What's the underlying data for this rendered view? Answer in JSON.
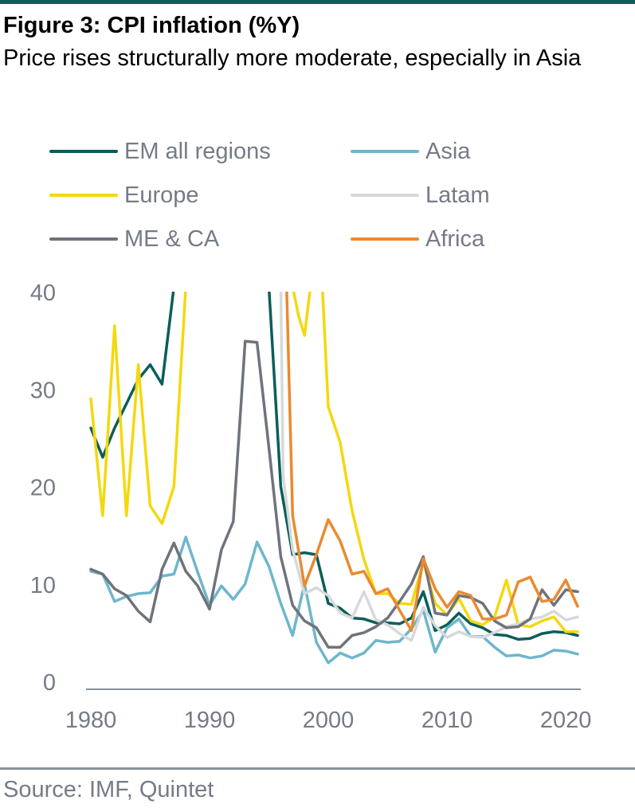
{
  "header": {
    "title": "Figure 3: CPI inflation (%Y)",
    "subtitle": "Price rises structurally more moderate, especially in Asia"
  },
  "footer": {
    "source": "Source: IMF, Quintet"
  },
  "colors": {
    "top_rule": "#0b5e59",
    "axis_text": "#757b86",
    "bottom_rule": "#8a9098"
  },
  "chart_data": {
    "type": "line",
    "title": "CPI inflation (%Y)",
    "xlabel": "",
    "ylabel": "",
    "xlim": [
      1980,
      2021
    ],
    "ylim": [
      0,
      40
    ],
    "yticks": [
      0,
      10,
      20,
      30,
      40
    ],
    "xticks": [
      1980,
      1990,
      2000,
      2010,
      2020
    ],
    "grid": false,
    "legend": "top",
    "series": [
      {
        "name": "EM all regions",
        "color": "#0b5e59",
        "points": [
          [
            1980,
            26
          ],
          [
            1981,
            23
          ],
          [
            1982,
            26
          ],
          [
            1983,
            28.5
          ],
          [
            1984,
            31
          ],
          [
            1985,
            32.5
          ],
          [
            1986,
            30.5
          ],
          [
            1987,
            40.5
          ],
          [
            1995,
            40.5
          ],
          [
            1996,
            20
          ],
          [
            1997,
            13
          ],
          [
            1998,
            13.2
          ],
          [
            1999,
            13
          ],
          [
            2000,
            8
          ],
          [
            2001,
            7.5
          ],
          [
            2002,
            6.5
          ],
          [
            2003,
            6.4
          ],
          [
            2004,
            6
          ],
          [
            2005,
            6
          ],
          [
            2006,
            5.9
          ],
          [
            2007,
            6.5
          ],
          [
            2008,
            9.2
          ],
          [
            2009,
            5.2
          ],
          [
            2010,
            5.8
          ],
          [
            2011,
            7
          ],
          [
            2012,
            5.9
          ],
          [
            2013,
            5.5
          ],
          [
            2014,
            4.8
          ],
          [
            2015,
            4.7
          ],
          [
            2016,
            4.3
          ],
          [
            2017,
            4.4
          ],
          [
            2018,
            4.9
          ],
          [
            2019,
            5.1
          ],
          [
            2020,
            5
          ],
          [
            2021,
            4.7
          ]
        ]
      },
      {
        "name": "Asia",
        "color": "#6fb6cd",
        "points": [
          [
            1980,
            11.3
          ],
          [
            1981,
            11
          ],
          [
            1982,
            8.2
          ],
          [
            1983,
            8.7
          ],
          [
            1984,
            9
          ],
          [
            1985,
            9.1
          ],
          [
            1986,
            10.8
          ],
          [
            1987,
            11
          ],
          [
            1988,
            14.8
          ],
          [
            1989,
            11.2
          ],
          [
            1990,
            7.8
          ],
          [
            1991,
            9.8
          ],
          [
            1992,
            8.4
          ],
          [
            1993,
            10
          ],
          [
            1994,
            14.3
          ],
          [
            1995,
            11.8
          ],
          [
            1996,
            8
          ],
          [
            1997,
            4.7
          ],
          [
            1998,
            10
          ],
          [
            1999,
            4
          ],
          [
            2000,
            1.9
          ],
          [
            2001,
            2.9
          ],
          [
            2002,
            2.4
          ],
          [
            2003,
            2.9
          ],
          [
            2004,
            4.2
          ],
          [
            2005,
            4
          ],
          [
            2006,
            4.1
          ],
          [
            2007,
            5.4
          ],
          [
            2008,
            7.3
          ],
          [
            2009,
            3
          ],
          [
            2010,
            5.5
          ],
          [
            2011,
            6.4
          ],
          [
            2012,
            4.6
          ],
          [
            2013,
            4.6
          ],
          [
            2014,
            3.5
          ],
          [
            2015,
            2.6
          ],
          [
            2016,
            2.7
          ],
          [
            2017,
            2.4
          ],
          [
            2018,
            2.6
          ],
          [
            2019,
            3.2
          ],
          [
            2020,
            3.1
          ],
          [
            2021,
            2.8
          ]
        ]
      },
      {
        "name": "Europe",
        "color": "#f4d80e",
        "points": [
          [
            1980,
            29
          ],
          [
            1981,
            17
          ],
          [
            1982,
            36.5
          ],
          [
            1983,
            17
          ],
          [
            1984,
            32.5
          ],
          [
            1985,
            18
          ],
          [
            1986,
            16.2
          ],
          [
            1987,
            20
          ],
          [
            1988,
            40.5
          ],
          [
            1997,
            40.5
          ],
          [
            1997.5,
            37.5
          ],
          [
            1998,
            35.5
          ],
          [
            1998.5,
            40.5
          ],
          [
            1999.5,
            40.5
          ],
          [
            2000,
            28.2
          ],
          [
            2001,
            24.5
          ],
          [
            2002,
            17.5
          ],
          [
            2003,
            12.5
          ],
          [
            2004,
            9
          ],
          [
            2005,
            9
          ],
          [
            2006,
            8
          ],
          [
            2007,
            7.9
          ],
          [
            2008,
            12.2
          ],
          [
            2009,
            8
          ],
          [
            2010,
            6.8
          ],
          [
            2011,
            8.5
          ],
          [
            2012,
            6.2
          ],
          [
            2013,
            5.8
          ],
          [
            2014,
            6.6
          ],
          [
            2015,
            10.4
          ],
          [
            2016,
            5.8
          ],
          [
            2017,
            5.6
          ],
          [
            2018,
            6.2
          ],
          [
            2019,
            6.6
          ],
          [
            2020,
            5.1
          ],
          [
            2021,
            5.1
          ]
        ]
      },
      {
        "name": "Latam",
        "color": "#d6d9dc",
        "points": [
          [
            1996,
            40.5
          ],
          [
            1996.2,
            21
          ],
          [
            1997,
            13.5
          ],
          [
            1998,
            9
          ],
          [
            1999,
            9.6
          ],
          [
            2000,
            8.8
          ],
          [
            2001,
            7
          ],
          [
            2002,
            6.5
          ],
          [
            2003,
            9.2
          ],
          [
            2004,
            6.3
          ],
          [
            2005,
            5.8
          ],
          [
            2006,
            4.9
          ],
          [
            2007,
            4.2
          ],
          [
            2008,
            7.6
          ],
          [
            2009,
            5.7
          ],
          [
            2010,
            4.5
          ],
          [
            2011,
            5.1
          ],
          [
            2012,
            4.6
          ],
          [
            2013,
            4.5
          ],
          [
            2014,
            5
          ],
          [
            2015,
            5.6
          ],
          [
            2016,
            5.9
          ],
          [
            2017,
            6.4
          ],
          [
            2018,
            6.6
          ],
          [
            2019,
            7.2
          ],
          [
            2020,
            6.3
          ],
          [
            2021,
            6.6
          ]
        ]
      },
      {
        "name": "ME & CA",
        "color": "#6f737b",
        "points": [
          [
            1980,
            11.5
          ],
          [
            1981,
            11
          ],
          [
            1982,
            9.5
          ],
          [
            1983,
            8.8
          ],
          [
            1984,
            7.2
          ],
          [
            1985,
            6.1
          ],
          [
            1986,
            11.5
          ],
          [
            1987,
            14.2
          ],
          [
            1988,
            11.3
          ],
          [
            1989,
            9.8
          ],
          [
            1990,
            7.4
          ],
          [
            1991,
            13.5
          ],
          [
            1992,
            16.4
          ],
          [
            1993,
            34.9
          ],
          [
            1994,
            34.8
          ],
          [
            1995,
            24
          ],
          [
            1996,
            12.8
          ],
          [
            1997,
            7.8
          ],
          [
            1998,
            6.2
          ],
          [
            1999,
            5.5
          ],
          [
            2000,
            3.5
          ],
          [
            2001,
            3.5
          ],
          [
            2002,
            4.7
          ],
          [
            2003,
            5
          ],
          [
            2004,
            5.6
          ],
          [
            2005,
            6.5
          ],
          [
            2006,
            8.2
          ],
          [
            2007,
            10
          ],
          [
            2008,
            12.8
          ],
          [
            2009,
            7
          ],
          [
            2010,
            6.8
          ],
          [
            2011,
            8.8
          ],
          [
            2012,
            8.6
          ],
          [
            2013,
            8
          ],
          [
            2014,
            6.2
          ],
          [
            2015,
            5.5
          ],
          [
            2016,
            5.6
          ],
          [
            2017,
            6.4
          ],
          [
            2018,
            9.4
          ],
          [
            2019,
            7.8
          ],
          [
            2020,
            9.4
          ],
          [
            2021,
            9.2
          ]
        ]
      },
      {
        "name": "Africa",
        "color": "#ea8a30",
        "points": [
          [
            1996.5,
            40
          ],
          [
            1997,
            17
          ],
          [
            1998,
            9.8
          ],
          [
            1999,
            13
          ],
          [
            2000,
            16.6
          ],
          [
            2001,
            14.4
          ],
          [
            2002,
            11
          ],
          [
            2003,
            11.3
          ],
          [
            2004,
            9
          ],
          [
            2005,
            9.5
          ],
          [
            2006,
            7.3
          ],
          [
            2007,
            5.2
          ],
          [
            2008,
            12.6
          ],
          [
            2009,
            9.5
          ],
          [
            2010,
            7.6
          ],
          [
            2011,
            9.2
          ],
          [
            2012,
            8.8
          ],
          [
            2013,
            6.4
          ],
          [
            2014,
            6.4
          ],
          [
            2015,
            6.8
          ],
          [
            2016,
            10.2
          ],
          [
            2017,
            10.7
          ],
          [
            2018,
            8.2
          ],
          [
            2019,
            8.4
          ],
          [
            2020,
            10.4
          ],
          [
            2021,
            7.7
          ]
        ]
      }
    ]
  }
}
